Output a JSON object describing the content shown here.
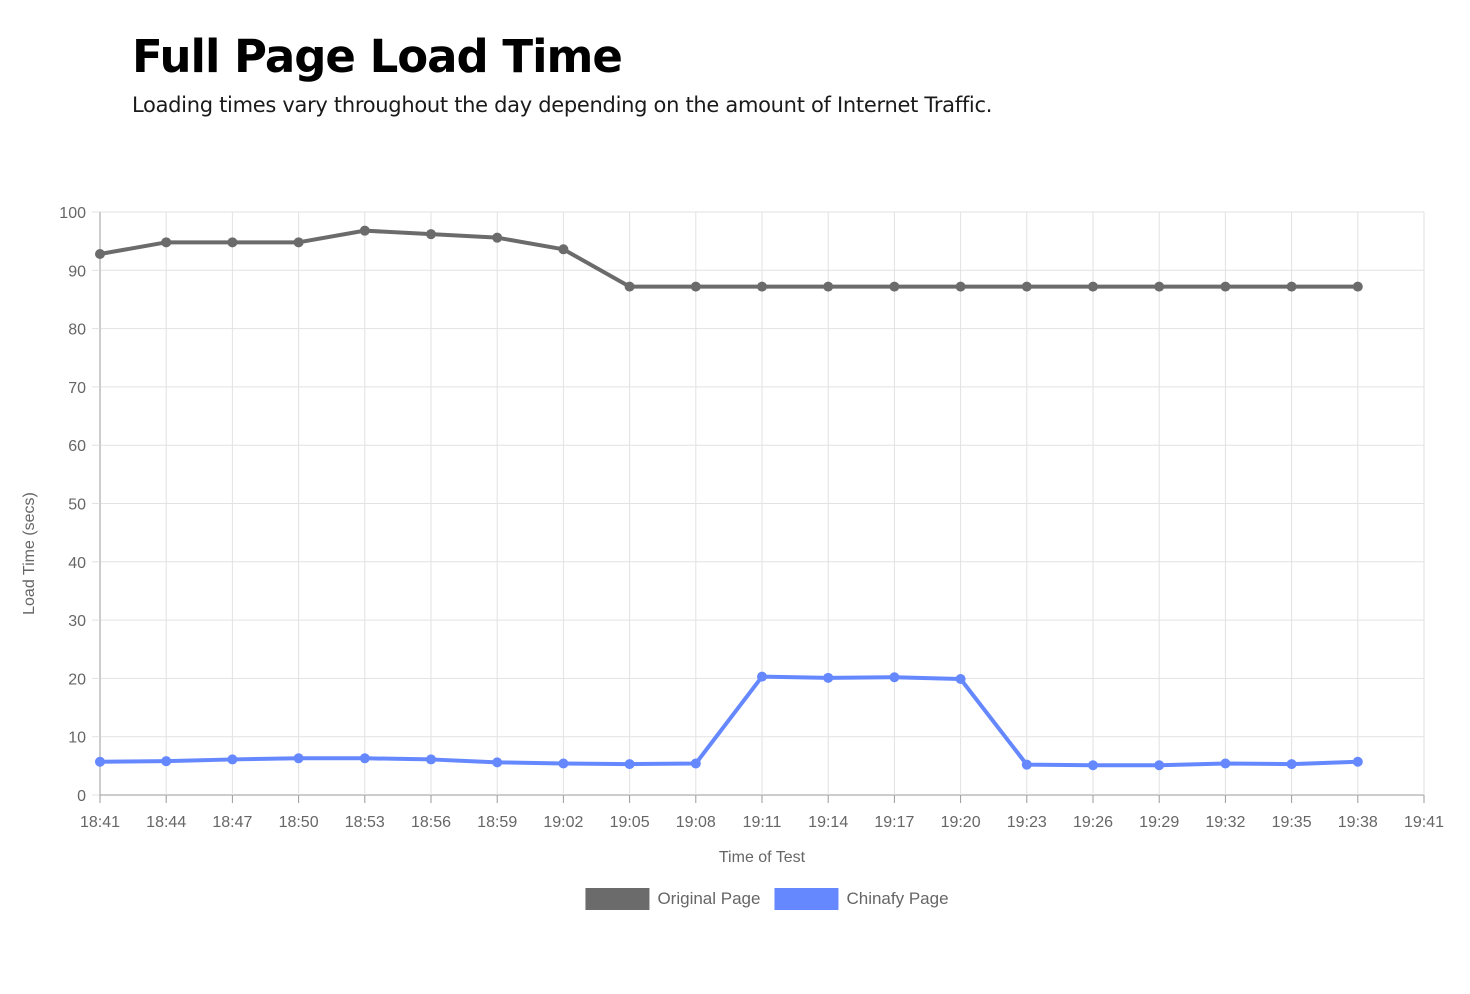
{
  "header": {
    "title": "Full Page Load Time",
    "subtitle": "Loading times vary throughout the day depending on the amount of Internet Traffic."
  },
  "chart_data": {
    "type": "line",
    "xlabel": "Time of Test",
    "ylabel": "Load Time (secs)",
    "ylim": [
      0,
      100
    ],
    "y_ticks": [
      0,
      10,
      20,
      30,
      40,
      50,
      60,
      70,
      80,
      90,
      100
    ],
    "x_ticks": [
      "18:41",
      "18:44",
      "18:47",
      "18:50",
      "18:53",
      "18:56",
      "18:59",
      "19:02",
      "19:05",
      "19:08",
      "19:11",
      "19:14",
      "19:17",
      "19:20",
      "19:23",
      "19:26",
      "19:29",
      "19:32",
      "19:35",
      "19:38",
      "19:41"
    ],
    "x": [
      "18:41",
      "18:44",
      "18:47",
      "18:50",
      "18:53",
      "18:56",
      "18:59",
      "19:02",
      "19:05",
      "19:08",
      "19:11",
      "19:14",
      "19:17",
      "19:20",
      "19:23",
      "19:26",
      "19:29",
      "19:32",
      "19:35",
      "19:38"
    ],
    "grid": true,
    "legend_position": "bottom",
    "series": [
      {
        "name": "Original Page",
        "color": "#6b6b6b",
        "values": [
          92.8,
          94.8,
          94.8,
          94.8,
          96.8,
          96.2,
          95.6,
          93.6,
          87.2,
          87.2,
          87.2,
          87.2,
          87.2,
          87.2,
          87.2,
          87.2,
          87.2,
          87.2,
          87.2,
          87.2
        ]
      },
      {
        "name": "Chinafy Page",
        "color": "#6688ff",
        "values": [
          5.7,
          5.8,
          6.1,
          6.3,
          6.3,
          6.1,
          5.6,
          5.4,
          5.3,
          5.4,
          20.3,
          20.1,
          20.2,
          19.9,
          5.2,
          5.1,
          5.1,
          5.4,
          5.3,
          5.7
        ]
      }
    ]
  }
}
